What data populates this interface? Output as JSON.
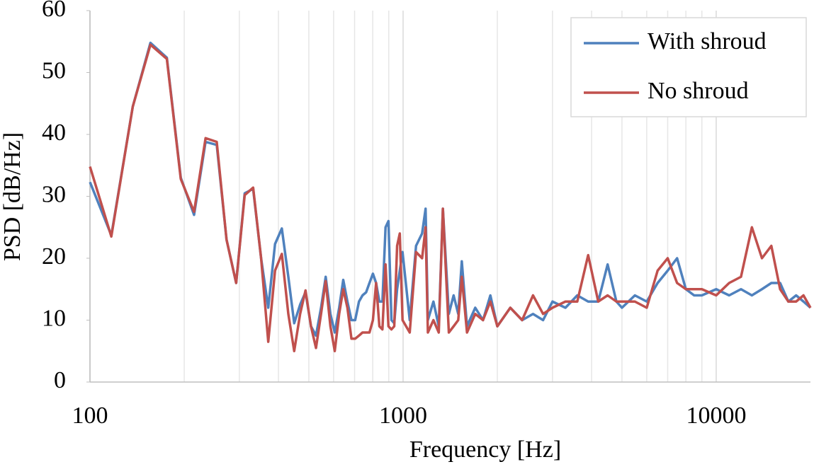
{
  "chart_data": {
    "type": "line",
    "x_label": "Frequency [Hz]",
    "y_label": "PSD [dB/Hz]",
    "x_scale": "log",
    "xlim": [
      100,
      20000
    ],
    "xticks": [
      100,
      1000,
      10000
    ],
    "ylim": [
      0,
      60
    ],
    "yticks": [
      0,
      10,
      20,
      30,
      40,
      50,
      60
    ],
    "grid": "x",
    "legend": "top-right",
    "x": [
      100,
      117,
      137,
      156,
      176,
      195,
      215,
      234,
      254,
      273,
      293,
      312,
      332,
      352,
      371,
      390,
      410,
      430,
      449,
      469,
      488,
      508,
      527,
      547,
      566,
      586,
      605,
      625,
      644,
      664,
      684,
      703,
      723,
      742,
      762,
      781,
      801,
      820,
      840,
      859,
      879,
      898,
      918,
      937,
      957,
      976,
      996,
      1050,
      1100,
      1150,
      1180,
      1200,
      1250,
      1300,
      1340,
      1400,
      1450,
      1500,
      1540,
      1600,
      1700,
      1800,
      1900,
      2000,
      2200,
      2400,
      2600,
      2800,
      3000,
      3300,
      3600,
      3900,
      4200,
      4500,
      4800,
      5000,
      5500,
      6000,
      6500,
      7000,
      7500,
      8000,
      8500,
      9000,
      10000,
      11000,
      12000,
      13000,
      14000,
      15000,
      16000,
      17000,
      18000,
      19000,
      20000
    ],
    "series": [
      {
        "name": "With shroud",
        "color": "#4f81bd",
        "values": [
          32.3,
          23.7,
          44.5,
          54.8,
          52.4,
          33,
          27,
          38.8,
          38.3,
          23,
          16,
          30.5,
          31.2,
          20,
          12,
          22.3,
          24.8,
          17,
          9.5,
          12.5,
          14.5,
          9,
          7.5,
          12,
          17,
          11,
          8,
          12,
          16.5,
          13,
          10,
          10,
          13,
          14,
          14.5,
          16,
          17.5,
          16,
          13,
          13,
          25,
          26,
          10,
          9.5,
          15,
          18,
          21,
          10,
          22,
          24,
          28,
          10,
          13,
          9,
          28,
          11,
          14,
          11,
          19.5,
          9,
          12,
          10,
          14,
          9,
          12,
          10,
          11,
          10,
          13,
          12,
          14,
          13,
          13,
          19,
          13,
          12,
          14,
          13,
          16,
          18,
          20,
          15,
          14,
          14,
          15,
          14,
          15,
          14,
          15,
          16,
          16,
          13,
          14,
          13,
          12
        ]
      },
      {
        "name": "No shroud",
        "color": "#c0504d",
        "values": [
          34.8,
          23.5,
          44.5,
          54.5,
          52.2,
          32.8,
          27.5,
          39.4,
          38.8,
          23,
          16,
          30.2,
          31.4,
          20,
          6.5,
          18,
          20.7,
          11,
          5,
          11,
          14.8,
          9,
          5.5,
          11,
          16.3,
          9,
          5,
          11,
          15,
          12,
          7,
          7,
          7.5,
          8,
          8,
          8,
          10,
          16,
          9,
          8.5,
          19,
          9,
          8.5,
          9,
          22,
          24,
          10,
          8,
          21,
          20,
          25,
          8,
          10,
          8,
          28,
          8,
          9,
          10,
          17,
          8,
          11,
          10,
          13,
          9,
          12,
          10,
          14,
          11,
          12,
          13,
          13,
          20.5,
          13,
          14,
          13,
          13,
          13,
          12,
          18,
          20,
          16,
          15,
          15,
          15,
          14,
          16,
          17,
          25,
          20,
          22,
          15,
          13,
          13,
          14,
          12
        ]
      }
    ]
  }
}
